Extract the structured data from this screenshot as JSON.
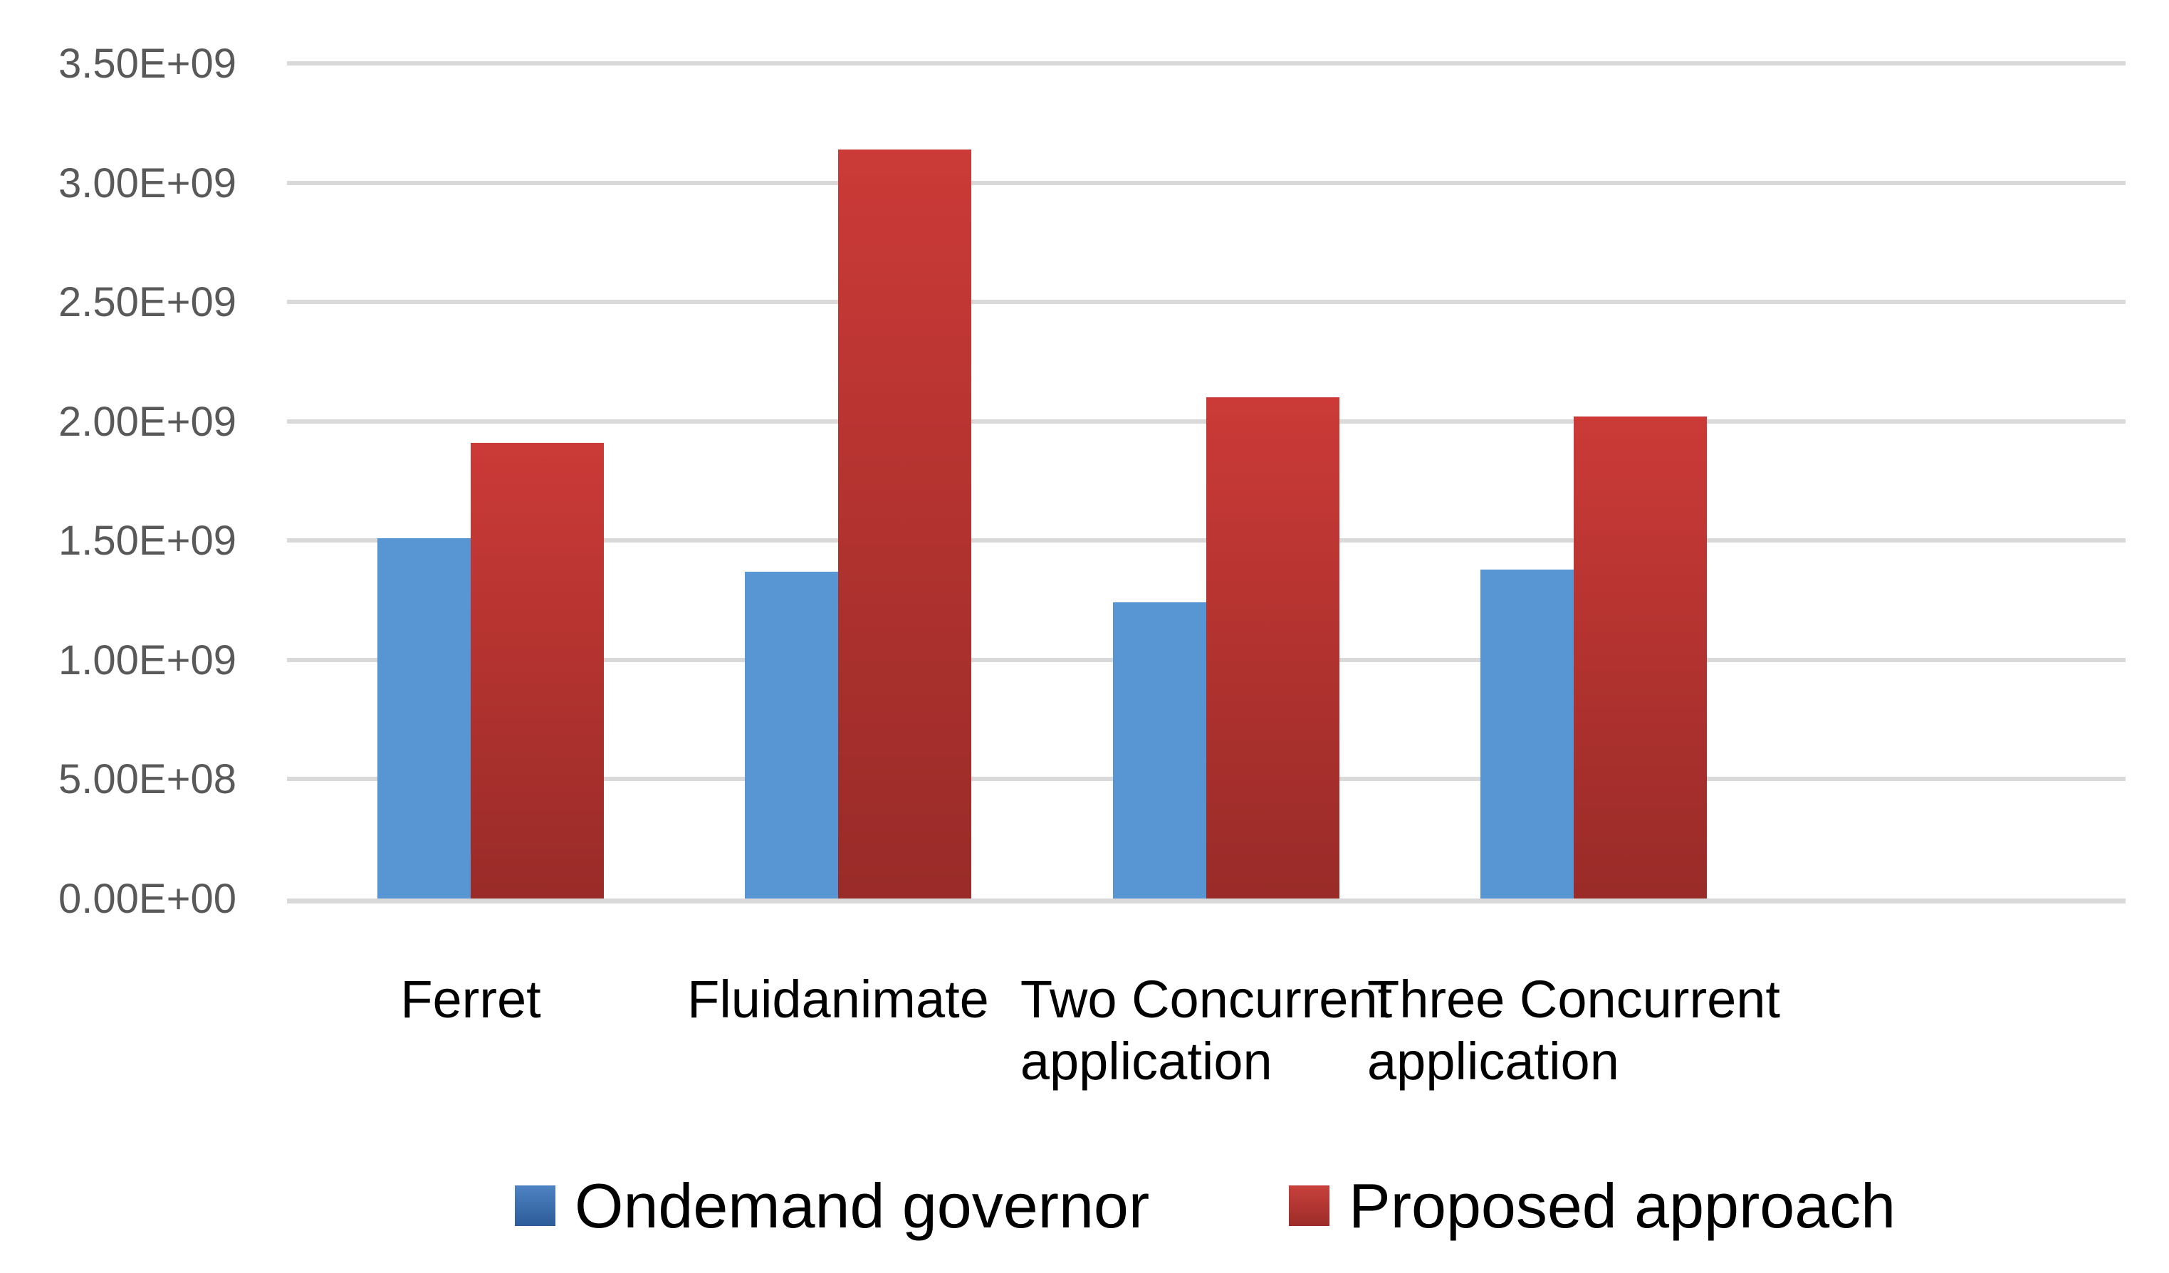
{
  "chart_data": {
    "type": "bar",
    "title": "",
    "xlabel": "",
    "ylabel": "",
    "categories": [
      "Ferret",
      "Fluidanimate",
      "Two Concurrent\napplication",
      "Three Concurrent\napplication"
    ],
    "series": [
      {
        "name": "Ondemand governor",
        "values": [
          1510000000,
          1370000000,
          1240000000,
          1380000000
        ],
        "color": "#5796D2",
        "legend_swatch_top": "#4E82C2",
        "legend_swatch_bottom": "#2D5C99"
      },
      {
        "name": "Proposed approach",
        "values": [
          1910000000,
          3140000000,
          2100000000,
          2020000000
        ],
        "color_top": "#CB3A37",
        "color_bottom": "#992B28",
        "legend_swatch_top": "#C8403C",
        "legend_swatch_bottom": "#9C2C29"
      }
    ],
    "ylim": [
      0,
      3500000000
    ],
    "y_ticks": [
      "0.00E+00",
      "5.00E+08",
      "1.00E+09",
      "1.50E+09",
      "2.00E+09",
      "2.50E+09",
      "3.00E+09",
      "3.50E+09"
    ],
    "grid": true,
    "legend_position": "bottom"
  },
  "style_colors": {
    "gridline": "#D9D9D9",
    "axis_line": "#D6D6D6",
    "tick_text": "#595959",
    "label_text": "#000000",
    "background": "#FFFFFF"
  }
}
